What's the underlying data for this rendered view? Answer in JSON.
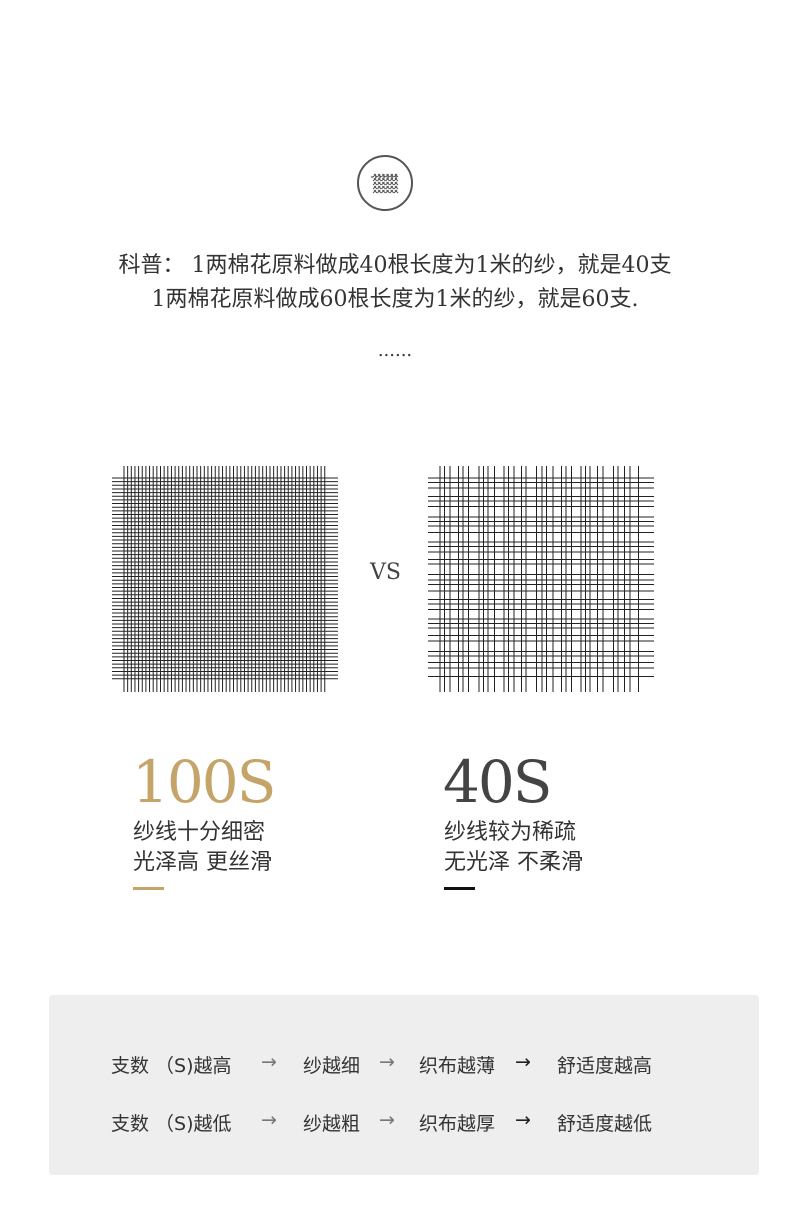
{
  "intro": {
    "line1": "科普： 1两棉花原料做成40根长度为1米的纱，就是40支",
    "line2": "1两棉花原料做成60根长度为1米的纱，就是60支.",
    "ellipsis": "......"
  },
  "icons": {
    "badge": "woven-fabric-icon"
  },
  "compare": {
    "vs": "VS",
    "left": {
      "title": "100S",
      "line1": "纱线十分细密",
      "line2": "光泽高 更丝滑",
      "color": "#c4a468"
    },
    "right": {
      "title": "40S",
      "line1": "纱线较为稀疏",
      "line2": "无光泽 不柔滑",
      "color": "#444444"
    }
  },
  "summary": {
    "rows": [
      {
        "a": "支数 （S)越高",
        "b": "纱越细",
        "c": "织布越薄",
        "d": "舒适度越高"
      },
      {
        "a": "支数 （S)越低",
        "b": "纱越粗",
        "c": "织布越厚",
        "d": "舒适度越低"
      }
    ],
    "arrow": "→"
  }
}
